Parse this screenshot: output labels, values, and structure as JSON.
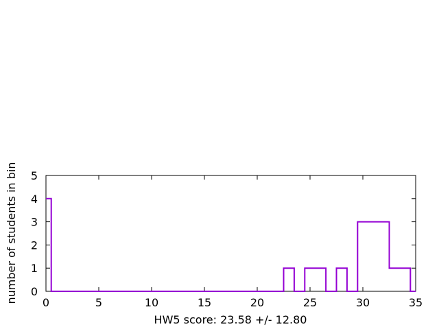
{
  "chart_data": {
    "type": "step",
    "xlabel": "HW5 score: 23.58 +/- 12.80",
    "ylabel": "number of students in bin",
    "xlim": [
      0,
      35
    ],
    "ylim": [
      0,
      5
    ],
    "xticks": [
      0,
      5,
      10,
      15,
      20,
      25,
      30,
      35
    ],
    "yticks": [
      0,
      1,
      2,
      3,
      4,
      5
    ],
    "grid": false,
    "line_color": "#9400d3",
    "x": [
      0,
      0.5,
      22.5,
      23.5,
      24.5,
      26.5,
      27.5,
      28.5,
      29.5,
      32.5,
      34.5,
      35
    ],
    "y": [
      4,
      0,
      1,
      0,
      1,
      0,
      1,
      0,
      3,
      1,
      0,
      0
    ]
  }
}
